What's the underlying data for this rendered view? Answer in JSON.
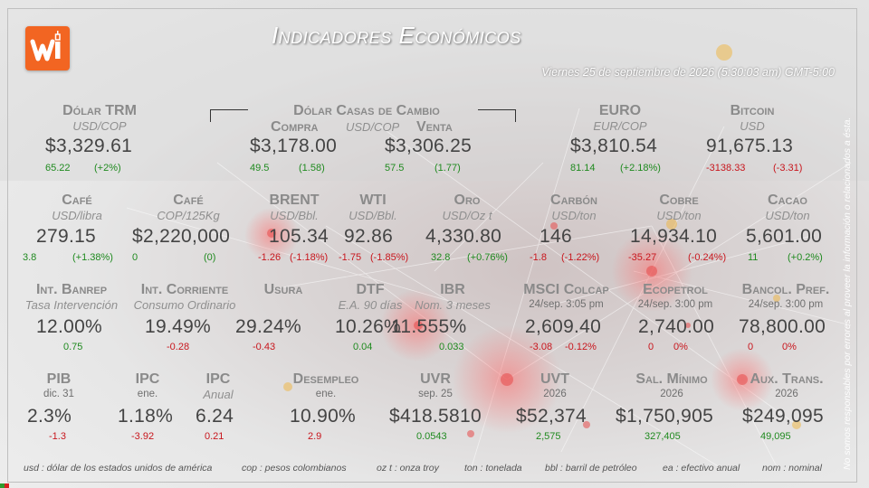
{
  "title": "Indicadores Económicos",
  "date": "Viernes 25 de septiembre de 2026 (5:30:03 am) GMT-5:00",
  "disclaimer": "No somos responsables por errores al proveer la información o relacionados a ésta.",
  "brand_color": "#f26522",
  "row1": {
    "trm": {
      "label": "Dólar TRM",
      "unit": "USD/COP",
      "value": "$3,329.61",
      "change": "65.22",
      "pct": "(+2%)"
    },
    "casas": {
      "label": "Dólar Casas de Cambio",
      "unit": "USD/COP",
      "compra_label": "Compra",
      "venta_label": "Venta",
      "compra": {
        "value": "$3,178.00",
        "change": "49.5",
        "pct": "(1.58)"
      },
      "venta": {
        "value": "$3,306.25",
        "change": "57.5",
        "pct": "(1.77)"
      }
    },
    "euro": {
      "label": "EURO",
      "unit": "EUR/COP",
      "value": "$3,810.54",
      "change": "81.14",
      "pct": "(+2.18%)"
    },
    "bitcoin": {
      "label": "Bitcoin",
      "unit": "USD",
      "value": "91,675.13",
      "change": "-3138.33",
      "pct": "(-3.31)"
    }
  },
  "row2": {
    "cafe_usd": {
      "label": "Café",
      "unit": "USD/libra",
      "value": "279.15",
      "change": "3.8",
      "pct": "(+1.38%)"
    },
    "cafe_cop": {
      "label": "Café",
      "unit": "COP/125Kg",
      "value": "$2,220,000",
      "change": "0",
      "pct": "(0)"
    },
    "brent": {
      "label": "BRENT",
      "unit": "USD/Bbl.",
      "value": "105.34",
      "change": "-1.26",
      "pct": "(-1.18%)"
    },
    "wti": {
      "label": "WTI",
      "unit": "USD/Bbl.",
      "value": "92.86",
      "change": "-1.75",
      "pct": "(-1.85%)"
    },
    "oro": {
      "label": "Oro",
      "unit": "USD/Oz t",
      "value": "4,330.80",
      "change": "32.8",
      "pct": "(+0.76%)"
    },
    "carbon": {
      "label": "Carbón",
      "unit": "USD/ton",
      "value": "146",
      "change": "-1.8",
      "pct": "(-1.22%)"
    },
    "cobre": {
      "label": "Cobre",
      "unit": "USD/ton",
      "value": "14,934.10",
      "change": "-35.27",
      "pct": "(-0.24%)"
    },
    "cacao": {
      "label": "Cacao",
      "unit": "USD/ton",
      "value": "5,601.00",
      "change": "11",
      "pct": "(+0.2%)"
    }
  },
  "row3": {
    "banrep": {
      "label": "Int. Banrep",
      "unit": "Tasa Intervención",
      "value": "12.00%",
      "change": "0.75"
    },
    "corriente": {
      "label": "Int. Corriente",
      "unit": "Consumo Ordinario",
      "value": "19.49%",
      "change": "-0.28"
    },
    "usura": {
      "label": "Usura",
      "value": "29.24%",
      "change": "-0.43"
    },
    "dtf": {
      "label": "DTF",
      "unit": "E.A. 90 días",
      "value": "10.26%",
      "change": "0.04"
    },
    "ibr": {
      "label": "IBR",
      "unit": "Nom. 3 meses",
      "value": "11.555%",
      "change": "0.033"
    },
    "msci": {
      "label": "MSCI Colcap",
      "sub": "24/sep. 3:05 pm",
      "value": "2,609.40",
      "change": "-3.08",
      "pct": "-0.12%"
    },
    "ecopetrol": {
      "label": "Ecopetrol",
      "sub": "24/sep. 3:00 pm",
      "value": "2,740.00",
      "change": "0",
      "pct": "0%"
    },
    "bancol": {
      "label": "Bancol. Pref.",
      "sub": "24/sep. 3:00 pm",
      "value": "78,800.00",
      "change": "0",
      "pct": "0%"
    }
  },
  "row4": {
    "pib": {
      "label": "PIB",
      "sub": "dic. 31",
      "value": "2.3%",
      "change": "-1.3"
    },
    "ipc": {
      "label": "IPC",
      "sub": "ene.",
      "value": "1.18%",
      "change": "-3.92"
    },
    "ipc_anual": {
      "label": "IPC",
      "unit": "Anual",
      "value": "6.24",
      "change": "0.21"
    },
    "desempleo": {
      "label": "Desempleo",
      "sub": "ene.",
      "value": "10.90%",
      "change": "2.9"
    },
    "uvr": {
      "label": "UVR",
      "sub": "sep. 25",
      "value": "$418.5810",
      "change": "0.0543"
    },
    "uvt": {
      "label": "UVT",
      "sub": "2026",
      "value": "$52,374",
      "change": "2,575"
    },
    "salmin": {
      "label": "Sal. Mínimo",
      "sub": "2026",
      "value": "$1,750,905",
      "change": "327,405"
    },
    "auxtrans": {
      "label": "Aux. Trans.",
      "sub": "2026",
      "value": "$249,095",
      "change": "49,095"
    }
  },
  "footer": [
    "usd : dólar de los estados unidos de américa",
    "cop : pesos colombianos",
    "oz t : onza troy",
    "ton : tonelada",
    "bbl : barril de petróleo",
    "ea : efectivo anual",
    "nom : nominal"
  ]
}
